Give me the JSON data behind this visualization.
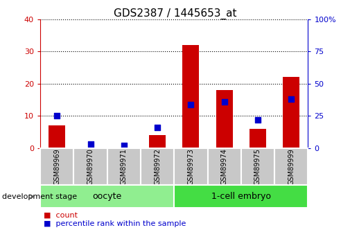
{
  "title": "GDS2387 / 1445653_at",
  "samples": [
    "GSM89969",
    "GSM89970",
    "GSM89971",
    "GSM89972",
    "GSM89973",
    "GSM89974",
    "GSM89975",
    "GSM89999"
  ],
  "counts": [
    7,
    0,
    0,
    4,
    32,
    18,
    6,
    22
  ],
  "percentiles": [
    25,
    3,
    2,
    16,
    34,
    36,
    22,
    38
  ],
  "groups": [
    {
      "label": "oocyte",
      "start": 0,
      "end": 4,
      "color": "#90EE90"
    },
    {
      "label": "1-cell embryo",
      "start": 4,
      "end": 8,
      "color": "#44DD44"
    }
  ],
  "left_ylim": [
    0,
    40
  ],
  "right_ylim": [
    0,
    100
  ],
  "left_yticks": [
    0,
    10,
    20,
    30,
    40
  ],
  "right_yticks": [
    0,
    25,
    50,
    75,
    100
  ],
  "left_tick_color": "#CC0000",
  "right_tick_color": "#0000CC",
  "bar_color": "#CC0000",
  "dot_color": "#0000CC",
  "grid_color": "#000000",
  "bar_width": 0.5,
  "dot_size": 35,
  "xlabel_area_color": "#C8C8C8",
  "legend_red": "count",
  "legend_blue": "percentile rank within the sample",
  "dev_stage_label": "development stage",
  "title_fontsize": 11,
  "tick_fontsize": 8,
  "legend_fontsize": 8,
  "group_label_fontsize": 9,
  "dev_stage_fontsize": 8,
  "sample_label_fontsize": 7
}
